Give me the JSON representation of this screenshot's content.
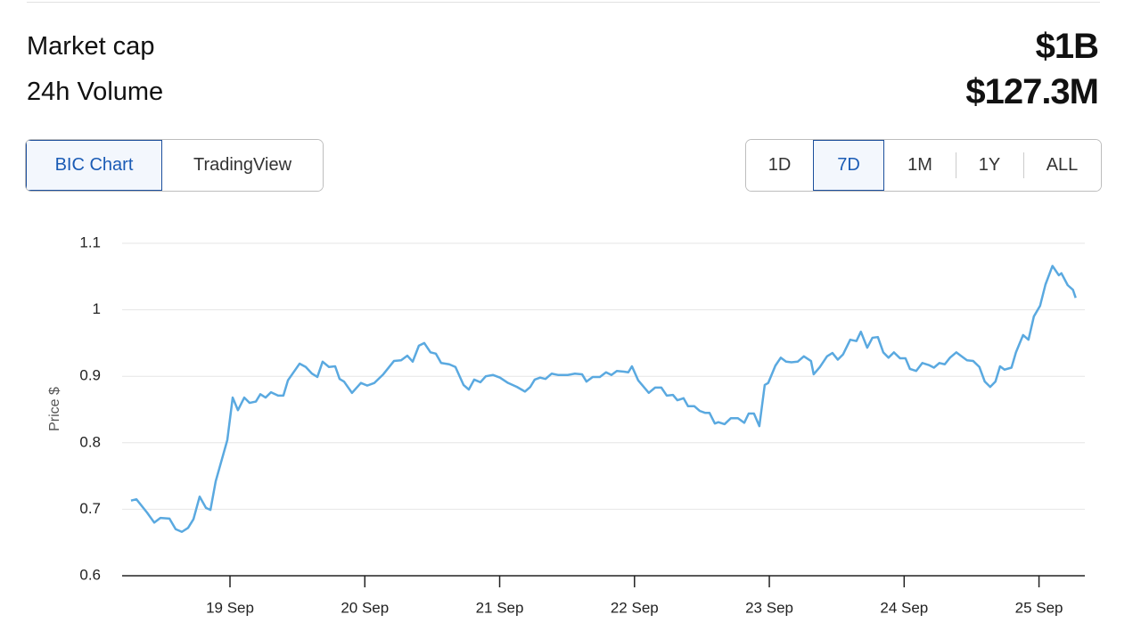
{
  "header": {
    "stats": [
      {
        "label": "Market cap",
        "value": "$1B"
      },
      {
        "label": "24h Volume",
        "value": "$127.3M"
      }
    ]
  },
  "source_tabs": {
    "items": [
      "BIC Chart",
      "TradingView"
    ],
    "active": 0
  },
  "range_tabs": {
    "items": [
      "1D",
      "7D",
      "1M",
      "1Y",
      "ALL"
    ],
    "active": 1
  },
  "chart_data": {
    "type": "line",
    "ylabel": "Price $",
    "color": "#5aa9e0",
    "grid": true,
    "xlim": [
      18.2,
      25.34
    ],
    "xticks": [
      {
        "value": 19,
        "label": "19 Sep"
      },
      {
        "value": 20,
        "label": "20 Sep"
      },
      {
        "value": 21,
        "label": "21 Sep"
      },
      {
        "value": 22,
        "label": "22 Sep"
      },
      {
        "value": 23,
        "label": "23 Sep"
      },
      {
        "value": 24,
        "label": "24 Sep"
      },
      {
        "value": 25,
        "label": "25 Sep"
      }
    ],
    "ylim": [
      0.6,
      1.1
    ],
    "yticks": [
      0.6,
      0.7,
      0.8,
      0.9,
      1,
      1.1
    ],
    "x": [
      18.266,
      18.306,
      18.385,
      18.438,
      18.484,
      18.551,
      18.597,
      18.643,
      18.689,
      18.729,
      18.775,
      18.822,
      18.855,
      18.894,
      18.98,
      19.02,
      19.059,
      19.106,
      19.145,
      19.192,
      19.225,
      19.264,
      19.304,
      19.357,
      19.396,
      19.43,
      19.516,
      19.562,
      19.608,
      19.648,
      19.687,
      19.734,
      19.78,
      19.813,
      19.846,
      19.905,
      19.971,
      20.018,
      20.071,
      20.137,
      20.216,
      20.269,
      20.315,
      20.355,
      20.401,
      20.441,
      20.487,
      20.527,
      20.566,
      20.626,
      20.672,
      20.732,
      20.771,
      20.811,
      20.857,
      20.897,
      20.95,
      21.002,
      21.062,
      21.128,
      21.188,
      21.227,
      21.26,
      21.3,
      21.34,
      21.386,
      21.432,
      21.505,
      21.558,
      21.611,
      21.644,
      21.69,
      21.743,
      21.789,
      21.829,
      21.869,
      21.921,
      21.954,
      21.981,
      22.027,
      22.106,
      22.153,
      22.199,
      22.239,
      22.285,
      22.318,
      22.364,
      22.397,
      22.444,
      22.483,
      22.523,
      22.556,
      22.596,
      22.622,
      22.668,
      22.715,
      22.767,
      22.814,
      22.847,
      22.886,
      22.926,
      22.966,
      22.992,
      23.045,
      23.085,
      23.124,
      23.164,
      23.21,
      23.256,
      23.309,
      23.329,
      23.375,
      23.428,
      23.468,
      23.508,
      23.547,
      23.6,
      23.646,
      23.679,
      23.726,
      23.765,
      23.805,
      23.845,
      23.884,
      23.924,
      23.97,
      24.01,
      24.043,
      24.089,
      24.135,
      24.182,
      24.221,
      24.261,
      24.301,
      24.34,
      24.387,
      24.42,
      24.466,
      24.512,
      24.558,
      24.598,
      24.638,
      24.677,
      24.711,
      24.744,
      24.796,
      24.829,
      24.882,
      24.922,
      24.962,
      25.008,
      25.048,
      25.1,
      25.147,
      25.166,
      25.213,
      25.252,
      25.272
    ],
    "values": [
      0.713,
      0.715,
      0.695,
      0.68,
      0.687,
      0.686,
      0.67,
      0.666,
      0.672,
      0.685,
      0.719,
      0.702,
      0.699,
      0.742,
      0.804,
      0.868,
      0.849,
      0.868,
      0.86,
      0.862,
      0.873,
      0.868,
      0.876,
      0.871,
      0.871,
      0.894,
      0.919,
      0.914,
      0.904,
      0.899,
      0.922,
      0.914,
      0.915,
      0.896,
      0.892,
      0.875,
      0.89,
      0.886,
      0.89,
      0.903,
      0.923,
      0.924,
      0.931,
      0.922,
      0.946,
      0.95,
      0.936,
      0.934,
      0.92,
      0.918,
      0.914,
      0.887,
      0.88,
      0.895,
      0.891,
      0.9,
      0.902,
      0.898,
      0.89,
      0.884,
      0.877,
      0.884,
      0.895,
      0.898,
      0.896,
      0.904,
      0.902,
      0.902,
      0.904,
      0.903,
      0.892,
      0.899,
      0.899,
      0.906,
      0.902,
      0.908,
      0.907,
      0.906,
      0.915,
      0.894,
      0.875,
      0.883,
      0.883,
      0.871,
      0.872,
      0.864,
      0.867,
      0.855,
      0.855,
      0.848,
      0.845,
      0.845,
      0.829,
      0.831,
      0.828,
      0.837,
      0.837,
      0.83,
      0.844,
      0.844,
      0.825,
      0.887,
      0.89,
      0.916,
      0.928,
      0.922,
      0.921,
      0.922,
      0.93,
      0.923,
      0.903,
      0.914,
      0.93,
      0.935,
      0.925,
      0.933,
      0.955,
      0.953,
      0.967,
      0.943,
      0.958,
      0.959,
      0.936,
      0.928,
      0.936,
      0.927,
      0.927,
      0.911,
      0.908,
      0.92,
      0.917,
      0.913,
      0.92,
      0.918,
      0.928,
      0.936,
      0.931,
      0.924,
      0.923,
      0.914,
      0.892,
      0.884,
      0.892,
      0.915,
      0.91,
      0.913,
      0.936,
      0.962,
      0.955,
      0.99,
      1.006,
      1.038,
      1.066,
      1.052,
      1.055,
      1.037,
      1.03,
      1.018
    ]
  }
}
